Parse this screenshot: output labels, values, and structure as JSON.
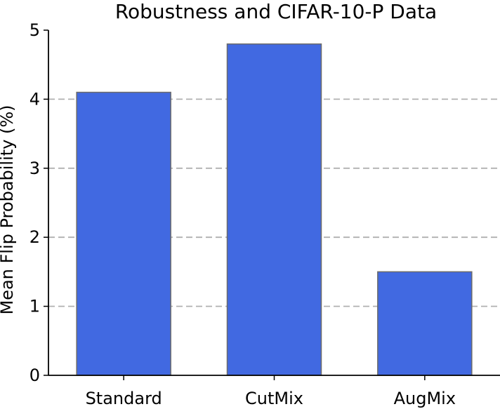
{
  "chart_data": {
    "type": "bar",
    "title": "Robustness and CIFAR-10-P Data",
    "xlabel": "",
    "ylabel": "Mean Flip Probability (%)",
    "categories": [
      "Standard",
      "CutMix",
      "AugMix"
    ],
    "values": [
      4.1,
      4.8,
      1.5
    ],
    "ylim": [
      0,
      5
    ],
    "yticks": [
      0,
      1,
      2,
      3,
      4,
      5
    ],
    "grid": "horizontal-dashed",
    "colors": {
      "bar": "#4169E1",
      "bar_edge": "#6b6b6b",
      "grid": "#b0b0b0",
      "axis": "#000000"
    }
  }
}
